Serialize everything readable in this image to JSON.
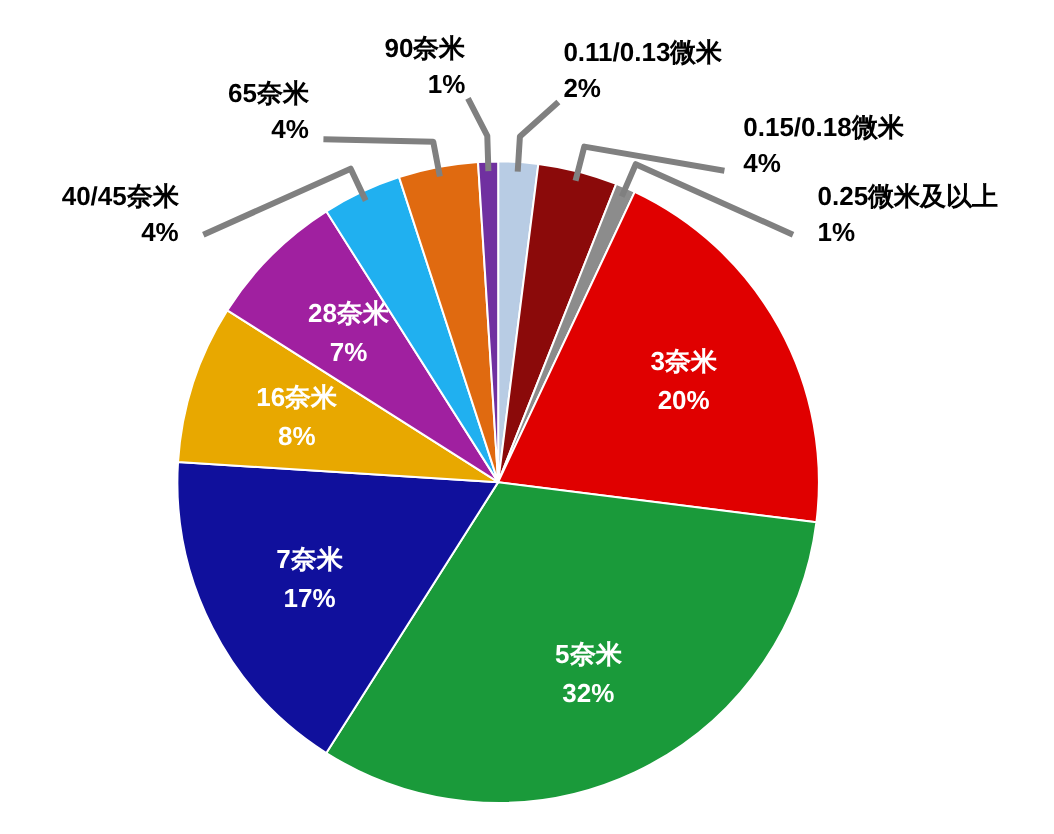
{
  "chart_data": {
    "type": "pie",
    "categories": [
      "0.11/0.13微米",
      "0.15/0.18微米",
      "0.25微米及以上",
      "3奈米",
      "5奈米",
      "7奈米",
      "16奈米",
      "28奈米",
      "40/45奈米",
      "65奈米",
      "90奈米"
    ],
    "values": [
      2,
      4,
      1,
      20,
      32,
      17,
      8,
      7,
      4,
      4,
      1
    ],
    "value_labels": [
      "2%",
      "4%",
      "1%",
      "20%",
      "32%",
      "17%",
      "8%",
      "7%",
      "4%",
      "4%",
      "1%"
    ],
    "colors": [
      "#b8cce4",
      "#8b0a0a",
      "#8c8c8c",
      "#e00000",
      "#1a9a3a",
      "#10109c",
      "#e8a800",
      "#a020a0",
      "#20b0f0",
      "#e06a10",
      "#7030a0"
    ]
  }
}
